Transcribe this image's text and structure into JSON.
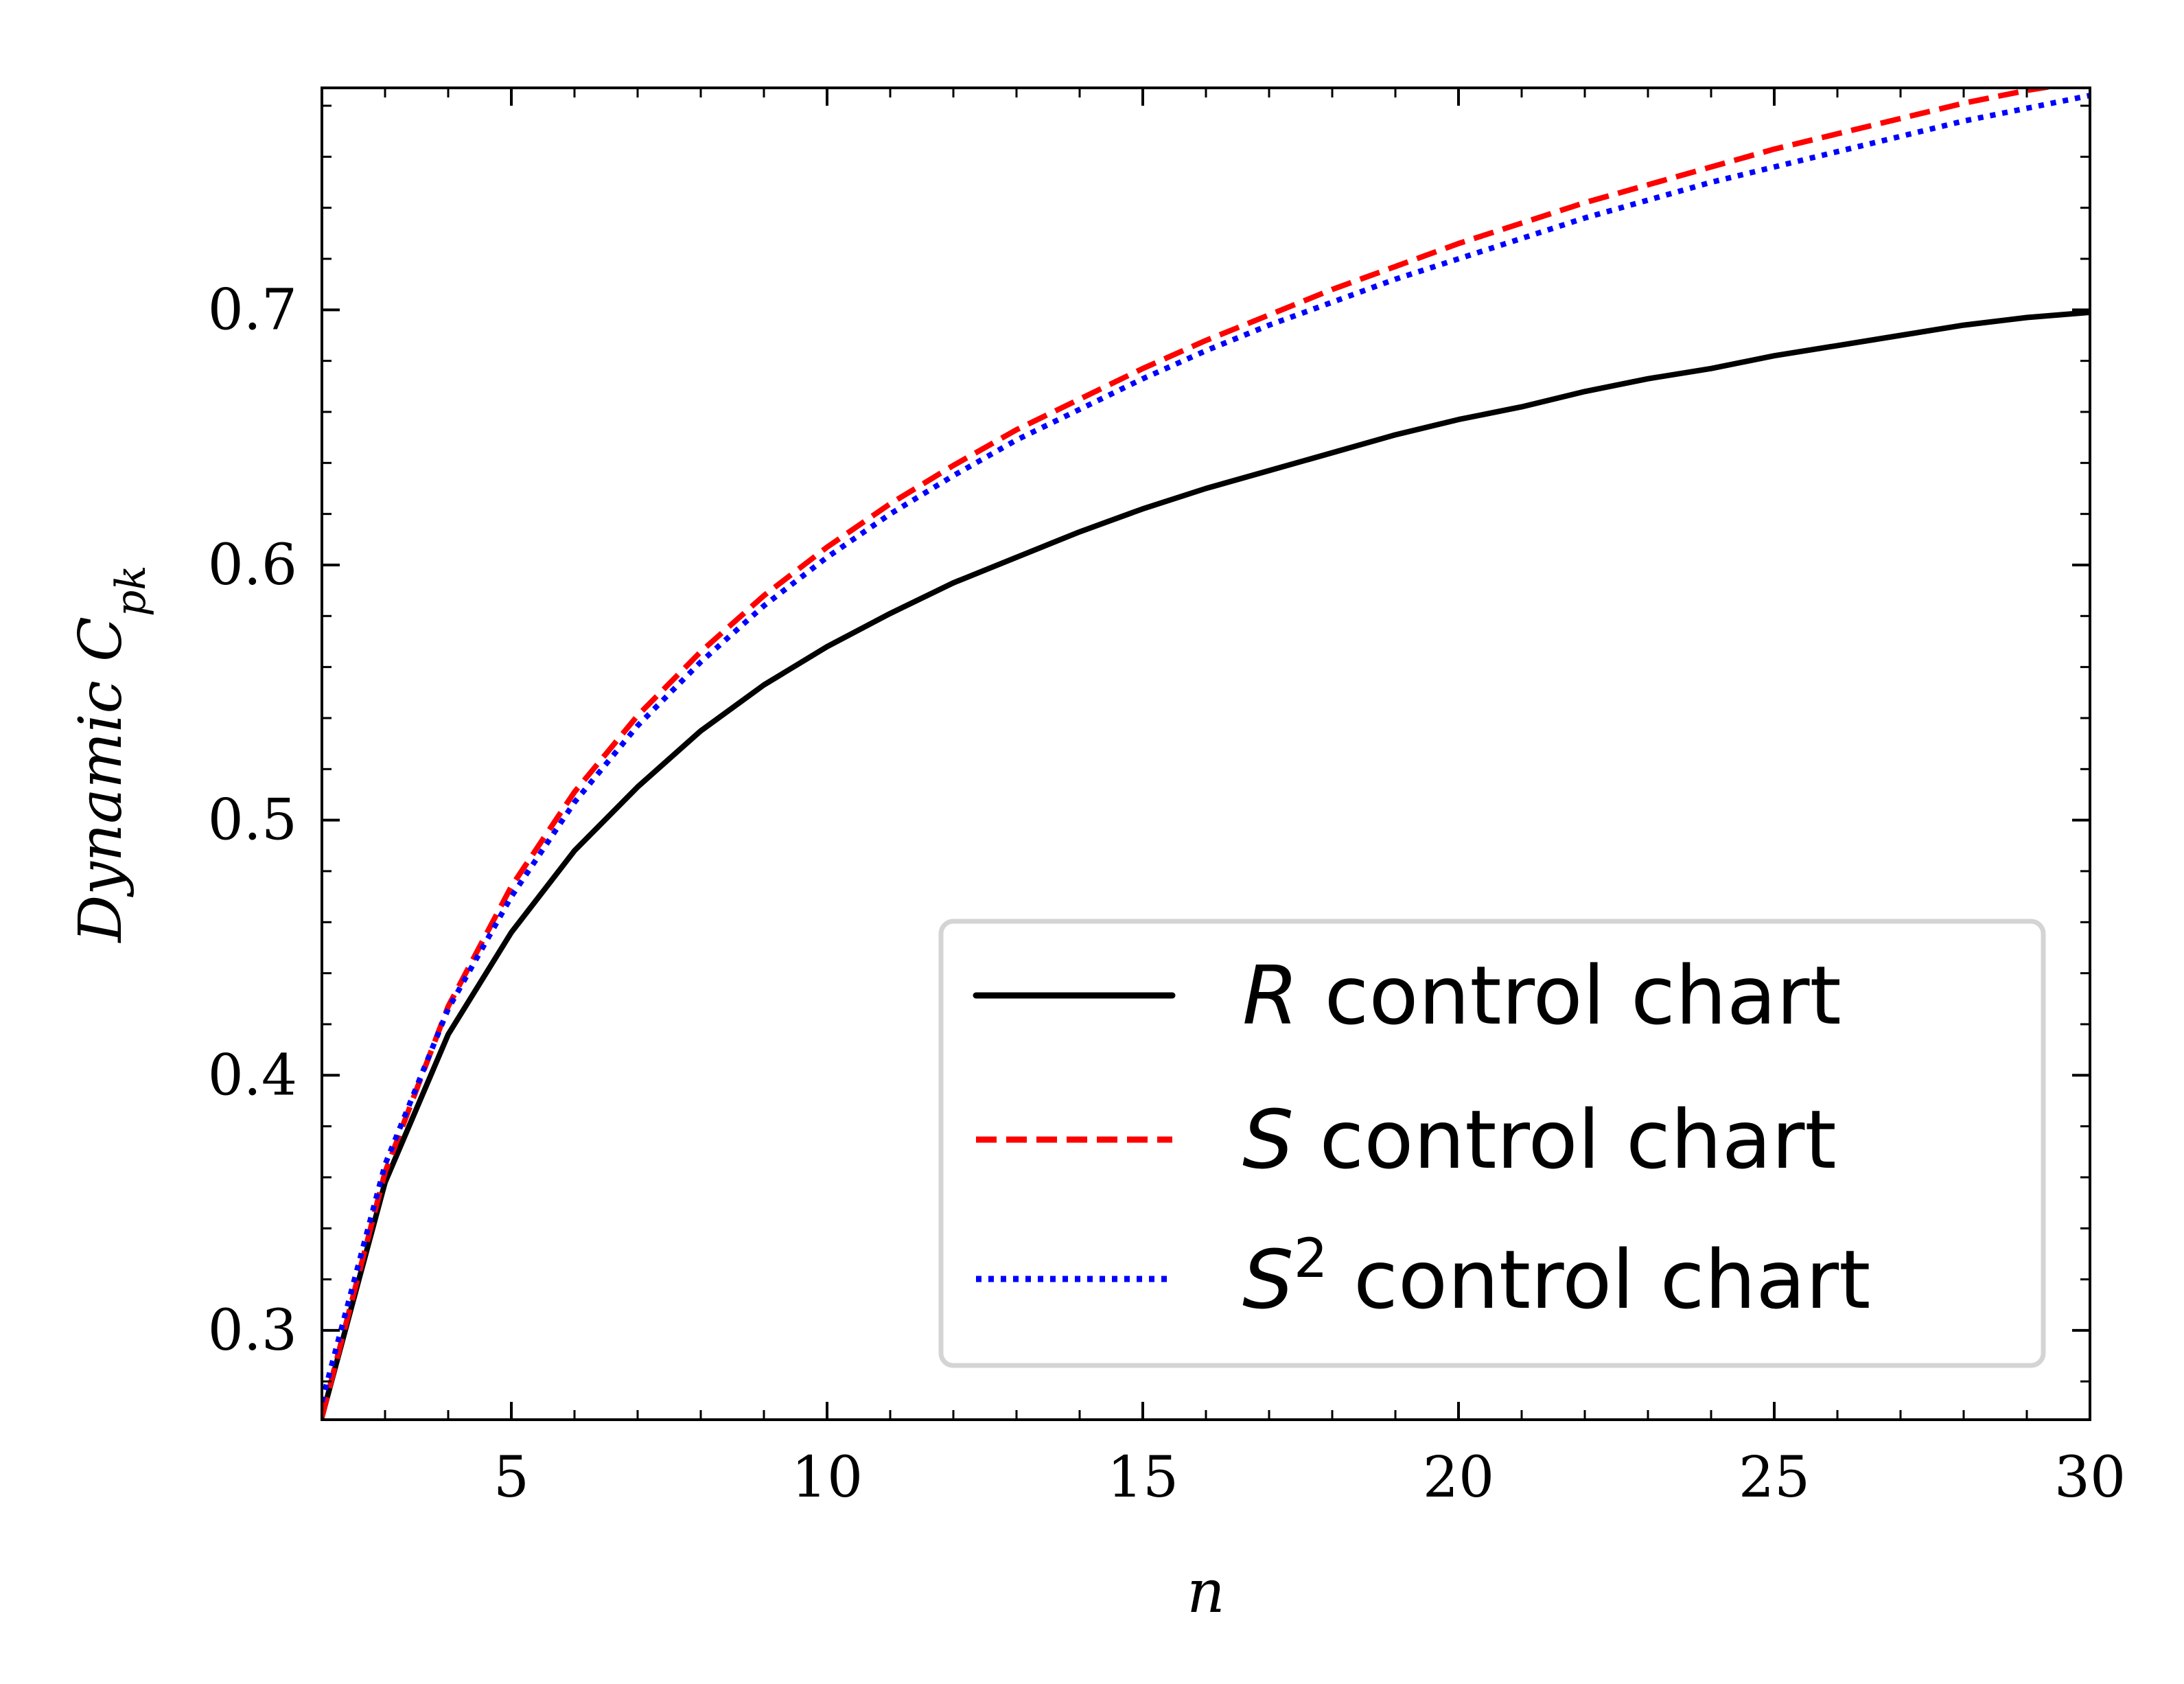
{
  "chart_data": {
    "type": "line",
    "title": "",
    "xlabel": "n",
    "ylabel": "Dynamic C",
    "ylabel_subscript": "pk",
    "xlim": [
      2,
      30
    ],
    "ylim": [
      0.265,
      0.787
    ],
    "xticks": [
      5,
      10,
      15,
      20,
      25,
      30
    ],
    "yticks": [
      0.3,
      0.4,
      0.5,
      0.6,
      0.7
    ],
    "x_tick_labels": [
      "5",
      "10",
      "15",
      "20",
      "25",
      "30"
    ],
    "y_tick_labels": [
      "0.3",
      "0.4",
      "0.5",
      "0.6",
      "0.7"
    ],
    "legend_position": "lower-right",
    "x": [
      2,
      3,
      4,
      5,
      6,
      7,
      8,
      9,
      10,
      11,
      12,
      13,
      14,
      15,
      16,
      17,
      18,
      19,
      20,
      21,
      22,
      23,
      24,
      25,
      26,
      27,
      28,
      29,
      30
    ],
    "series": [
      {
        "name": "R control chart",
        "name_italic": "R",
        "name_rest": " control chart",
        "style": "solid",
        "color": "#000000",
        "values": [
          0.266,
          0.358,
          0.416,
          0.456,
          0.488,
          0.513,
          0.535,
          0.553,
          0.568,
          0.581,
          0.593,
          0.603,
          0.613,
          0.622,
          0.63,
          0.637,
          0.644,
          0.651,
          0.657,
          0.662,
          0.668,
          0.673,
          0.677,
          0.682,
          0.686,
          0.69,
          0.694,
          0.697,
          0.699
        ]
      },
      {
        "name": "S control chart",
        "name_italic": "S",
        "name_rest": " control chart",
        "style": "dashed",
        "color": "#ff0000",
        "values": [
          0.266,
          0.362,
          0.427,
          0.474,
          0.511,
          0.541,
          0.566,
          0.588,
          0.607,
          0.624,
          0.639,
          0.653,
          0.665,
          0.677,
          0.688,
          0.698,
          0.708,
          0.717,
          0.726,
          0.734,
          0.742,
          0.749,
          0.756,
          0.763,
          0.769,
          0.775,
          0.781,
          0.786,
          0.79
        ]
      },
      {
        "name": "S2 control chart",
        "name_italic": "S",
        "name_sup": "2",
        "name_rest": " control chart",
        "style": "dotted",
        "color": "#0000ff",
        "values": [
          0.272,
          0.365,
          0.426,
          0.47,
          0.507,
          0.537,
          0.562,
          0.584,
          0.603,
          0.62,
          0.635,
          0.649,
          0.661,
          0.673,
          0.684,
          0.694,
          0.703,
          0.712,
          0.72,
          0.728,
          0.736,
          0.743,
          0.75,
          0.756,
          0.762,
          0.768,
          0.774,
          0.779,
          0.784
        ]
      }
    ]
  }
}
